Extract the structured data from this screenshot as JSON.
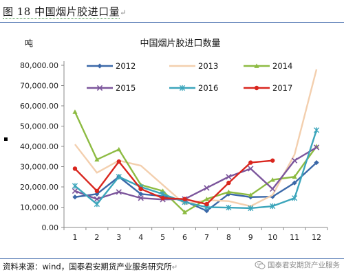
{
  "figure": {
    "title": "图 18 中国烟片胶进口量",
    "title_mark": "↵"
  },
  "source": {
    "text": "资料来源：wind，国泰君安期货产业服务研究所",
    "mark": "↵"
  },
  "watermark": {
    "text": "国泰君安期货产业服务",
    "icon": "wechat-icon"
  },
  "chart_data": {
    "type": "line",
    "title": "中国烟片胶进口数量",
    "ylabel": "吨",
    "xlabel": "",
    "categories": [
      "1",
      "2",
      "3",
      "4",
      "5",
      "6",
      "7",
      "8",
      "9",
      "10",
      "11",
      "12"
    ],
    "ylim": [
      0,
      80000
    ],
    "yticks": [
      "0.00",
      "10,000.00",
      "20,000.00",
      "30,000.00",
      "40,000.00",
      "50,000.00",
      "60,000.00",
      "70,000.00",
      "80,000.00"
    ],
    "grid": false,
    "legend_position": "top",
    "series": [
      {
        "name": "2012",
        "color": "#3b68a8",
        "marker": "diamond",
        "values": [
          15000,
          16500,
          25000,
          16500,
          15500,
          13000,
          8200,
          16500,
          15000,
          15200,
          22000,
          32000
        ]
      },
      {
        "name": "2013",
        "color": "#f3cfae",
        "marker": "none",
        "values": [
          41000,
          27000,
          33000,
          30500,
          21000,
          11500,
          13500,
          13000,
          10500,
          16000,
          36000,
          78000
        ]
      },
      {
        "name": "2014",
        "color": "#8dbb42",
        "marker": "triangle",
        "values": [
          57000,
          33500,
          38500,
          21000,
          18000,
          7500,
          14000,
          17500,
          16000,
          23500,
          25000,
          40000
        ]
      },
      {
        "name": "2015",
        "color": "#7c569c",
        "marker": "x",
        "values": [
          18000,
          14000,
          17500,
          14500,
          13800,
          14000,
          19500,
          25000,
          29000,
          19000,
          33000,
          39500
        ]
      },
      {
        "name": "2016",
        "color": "#3ba5bb",
        "marker": "star",
        "values": [
          20500,
          11500,
          25000,
          20000,
          16500,
          12500,
          10000,
          9800,
          9500,
          10500,
          14500,
          48000
        ]
      },
      {
        "name": "2017",
        "color": "#d9261e",
        "marker": "circle",
        "values": [
          29000,
          18000,
          32500,
          19000,
          14500,
          14000,
          11500,
          22000,
          32000,
          33000,
          null,
          null
        ]
      }
    ]
  }
}
